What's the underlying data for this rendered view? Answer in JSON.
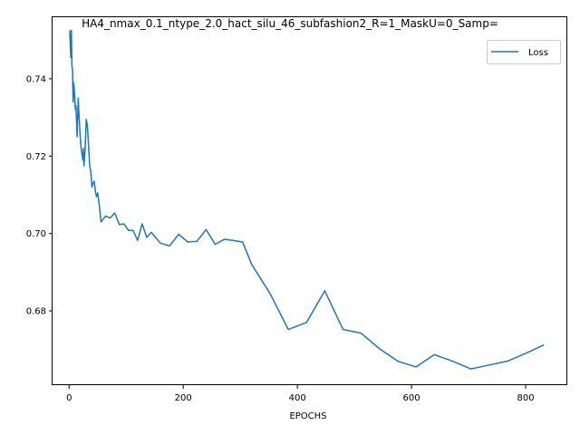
{
  "chart_data": {
    "type": "line",
    "title": "HA4_nmax_0.1_ntype_2.0_hact_silu_46_subfashion2_R=1_MaskU=0_Samp=",
    "xlabel": "EPOCHS",
    "ylabel": "",
    "xlim": [
      -29,
      873
    ],
    "ylim": [
      0.6608,
      0.7559
    ],
    "xticks": [
      0,
      200,
      400,
      600,
      800
    ],
    "yticks": [
      0.68,
      0.7,
      0.72,
      0.74
    ],
    "ytick_labels": [
      "0.68",
      "0.70",
      "0.72",
      "0.74"
    ],
    "grid": false,
    "legend": {
      "position": "top-right",
      "entries": [
        "Loss"
      ]
    },
    "series": [
      {
        "name": "Loss",
        "color": "#1f77b4",
        "x": [
          1,
          3,
          4,
          5,
          6,
          7,
          8,
          9,
          10,
          11,
          12,
          14,
          16,
          17,
          18,
          19,
          20,
          21,
          22,
          24,
          25,
          26,
          28,
          30,
          32,
          34,
          36,
          38,
          40,
          42,
          44,
          46,
          48,
          50,
          52,
          56,
          64,
          72,
          80,
          88,
          96,
          104,
          112,
          120,
          128,
          136,
          144,
          160,
          176,
          192,
          208,
          224,
          240,
          256,
          272,
          288,
          304,
          320,
          352,
          384,
          416,
          448,
          480,
          512,
          544,
          576,
          608,
          640,
          672,
          704,
          736,
          768,
          800,
          832
        ],
        "y": [
          0.7525,
          0.7455,
          0.7525,
          0.743,
          0.7425,
          0.734,
          0.739,
          0.737,
          0.735,
          0.732,
          0.733,
          0.725,
          0.735,
          0.7315,
          0.729,
          0.726,
          0.724,
          0.722,
          0.721,
          0.719,
          0.722,
          0.7175,
          0.7215,
          0.7295,
          0.728,
          0.723,
          0.7175,
          0.716,
          0.712,
          0.713,
          0.7135,
          0.711,
          0.7095,
          0.7105,
          0.7085,
          0.703,
          0.7045,
          0.704,
          0.7053,
          0.7023,
          0.7025,
          0.7008,
          0.7008,
          0.6982,
          0.7025,
          0.699,
          0.7003,
          0.6975,
          0.6968,
          0.6998,
          0.6978,
          0.698,
          0.701,
          0.6972,
          0.6985,
          0.6982,
          0.6978,
          0.692,
          0.6845,
          0.6752,
          0.677,
          0.6852,
          0.6752,
          0.6742,
          0.6702,
          0.667,
          0.6655,
          0.6687,
          0.667,
          0.665,
          0.666,
          0.667,
          0.669,
          0.6712
        ]
      }
    ]
  }
}
